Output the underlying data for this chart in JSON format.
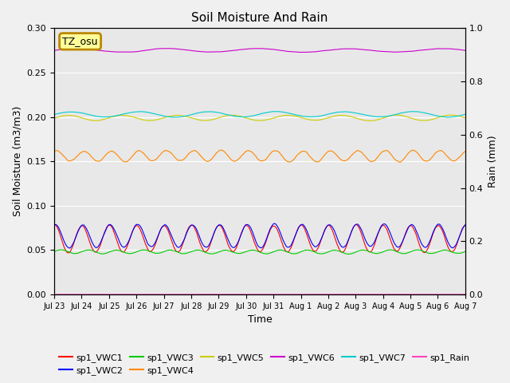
{
  "title": "Soil Moisture And Rain",
  "xlabel": "Time",
  "ylabel_left": "Soil Moisture (m3/m3)",
  "ylabel_right": "Rain (mm)",
  "ylim_left": [
    0.0,
    0.3
  ],
  "ylim_right": [
    0.0,
    1.0
  ],
  "background_color": "#e8e8e8",
  "fig_facecolor": "#f0f0f0",
  "label_box_text": "TZ_osu",
  "label_box_facecolor": "#ffff99",
  "label_box_edgecolor": "#bb8800",
  "num_points": 500,
  "xtick_labels": [
    "Jul 23",
    "Jul 24",
    "Jul 25",
    "Jul 26",
    "Jul 27",
    "Jul 28",
    "Jul 29",
    "Jul 30",
    "Jul 31",
    "Aug 1",
    "Aug 2",
    "Aug 3",
    "Aug 4",
    "Aug 5",
    "Aug 6",
    "Aug 7"
  ],
  "VWC1_color": "#ff0000",
  "VWC2_color": "#0000ff",
  "VWC3_color": "#00cc00",
  "VWC4_color": "#ff8800",
  "VWC5_color": "#cccc00",
  "VWC6_color": "#cc00cc",
  "VWC7_color": "#00cccc",
  "Rain_color": "#ff44bb",
  "legend_labels": [
    "sp1_VWC1",
    "sp1_VWC2",
    "sp1_VWC3",
    "sp1_VWC4",
    "sp1_VWC5",
    "sp1_VWC6",
    "sp1_VWC7",
    "sp1_Rain"
  ]
}
